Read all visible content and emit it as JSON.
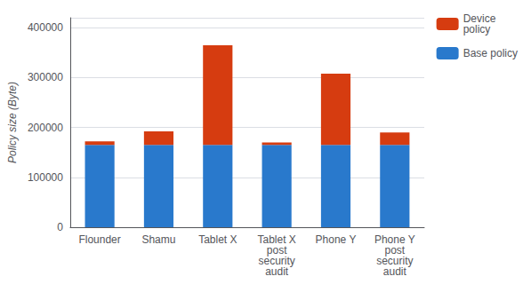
{
  "chart_data": {
    "type": "bar",
    "stacked": true,
    "categories": [
      "Flounder",
      "Shamu",
      "Tablet X",
      "Tablet X\npost\nsecurity\naudit",
      "Phone Y",
      "Phone Y\npost\nsecurity\naudit"
    ],
    "series": [
      {
        "name": "Base policy",
        "color": "#2979cc",
        "values": [
          165000,
          165000,
          165000,
          165000,
          165000,
          165000
        ]
      },
      {
        "name": "Device\npolicy",
        "color": "#d63c10",
        "values": [
          7000,
          27000,
          200000,
          5000,
          143000,
          25000
        ]
      }
    ],
    "ylabel": "Policy size (Byte)",
    "ylim": [
      0,
      420000
    ],
    "yticks": [
      0,
      100000,
      200000,
      300000,
      400000
    ],
    "grid": true,
    "legend": "upper right"
  }
}
